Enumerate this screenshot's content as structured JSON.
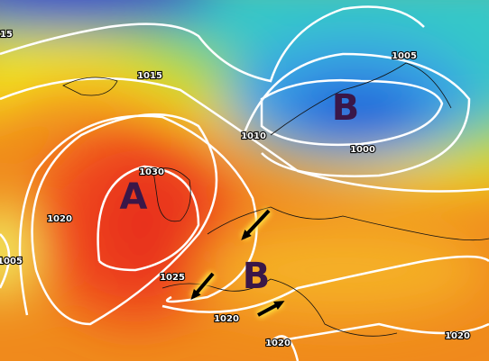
{
  "pressure_centers": [
    {
      "label": "A"
    },
    {
      "label": "B"
    },
    {
      "label": "B"
    }
  ],
  "isobar_labels": [
    "15",
    "1015",
    "1005",
    "1010",
    "1000",
    "1030",
    "1020",
    "1005",
    "1025",
    "1020",
    "1020",
    "1020"
  ]
}
